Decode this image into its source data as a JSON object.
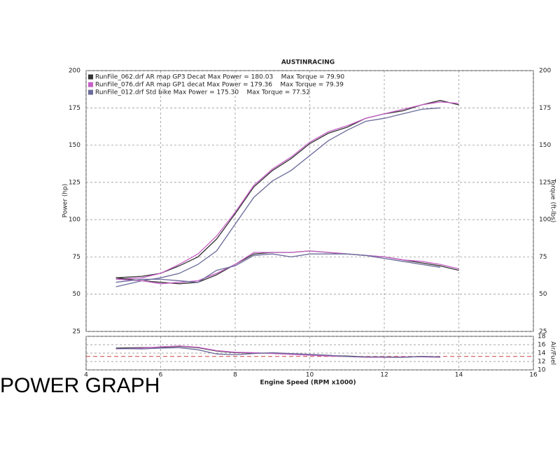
{
  "caption": "POWER GRAPH",
  "chart_data": [
    {
      "type": "line",
      "title": "AUSTINRACING",
      "y_label": "Power (hp)",
      "y2_label": "Torque (ft-lbs)",
      "xlim": [
        4,
        16
      ],
      "xticks": [
        4,
        6,
        8,
        10,
        12,
        14,
        16
      ],
      "ylim": [
        25,
        200
      ],
      "yticks": [
        25,
        50,
        75,
        100,
        125,
        150,
        175,
        200
      ],
      "y2lim": [
        25,
        200
      ],
      "y2ticks": [
        25,
        50,
        75,
        100,
        125,
        150,
        175,
        200
      ],
      "grid": true,
      "x": [
        4.8,
        5.5,
        6,
        6.5,
        7,
        7.5,
        8,
        8.5,
        9,
        9.5,
        10,
        10.5,
        11,
        11.5,
        12,
        12.5,
        13,
        13.5,
        14
      ],
      "series": [
        {
          "name": "RunFile_062.drf AR map GP3 Decat Max Power = 180.03    Max Torque = 79.90",
          "color": "#333333",
          "values": [
            61,
            62,
            64,
            69,
            75,
            87,
            104,
            122,
            133,
            141,
            151,
            158,
            162,
            168,
            171,
            173,
            177,
            180,
            177
          ]
        },
        {
          "name": "RunFile_076.drf AR map GP1 decat Max Power = 179.36    Max Torque = 79.39",
          "color": "#c65fc6",
          "values": [
            60,
            61,
            64,
            70,
            77,
            89,
            105,
            123,
            134,
            142,
            152,
            159,
            163,
            168,
            171,
            174,
            177,
            179,
            178
          ]
        },
        {
          "name": "RunFile_012.drf Std bike Max Power = 175.30    Max Torque = 77.52",
          "color": "#6a6a9a",
          "values": [
            55,
            59,
            61,
            64,
            70,
            79,
            97,
            115,
            126,
            133,
            143,
            153,
            160,
            166,
            168,
            171,
            174,
            175,
            null
          ]
        },
        {
          "color": "#333333",
          "axis": "y2",
          "values": [
            61,
            59,
            58,
            57,
            58,
            63,
            70,
            77,
            78,
            78,
            79,
            78,
            77,
            76,
            75,
            73,
            71,
            69,
            66
          ]
        },
        {
          "color": "#c65fc6",
          "axis": "y2",
          "values": [
            60,
            59,
            57,
            58,
            59,
            64,
            70,
            78,
            78,
            78,
            79,
            78,
            77,
            76,
            75,
            73,
            72,
            70,
            67
          ]
        },
        {
          "color": "#6a6a9a",
          "axis": "y2",
          "values": [
            58,
            60,
            60,
            59,
            58,
            66,
            69,
            76,
            77,
            75,
            77,
            77,
            77,
            76,
            74,
            72,
            70,
            68,
            null
          ]
        }
      ]
    },
    {
      "type": "line",
      "x_label": "Engine Speed (RPM x1000)",
      "y2_label": "Air/Fuel",
      "xlim": [
        4,
        16
      ],
      "xticks": [
        4,
        6,
        8,
        10,
        12,
        14,
        16
      ],
      "ylim": [
        10,
        18
      ],
      "yticks": [
        10,
        12,
        14,
        16,
        18
      ],
      "grid": true,
      "afr_reference": 13.2,
      "reference_color": "#d04040",
      "x": [
        4.8,
        5.5,
        6,
        6.5,
        7,
        7.5,
        8,
        8.5,
        9,
        9.5,
        10,
        10.5,
        11,
        11.5,
        12,
        12.5,
        13,
        13.5,
        14
      ],
      "series": [
        {
          "color": "#333333",
          "values": [
            15.2,
            15.3,
            15.4,
            15.6,
            15.3,
            14.5,
            14.1,
            14.0,
            14.0,
            13.8,
            13.6,
            13.4,
            13.3,
            13.1,
            13.0,
            13.0,
            13.2,
            13.1,
            null
          ]
        },
        {
          "color": "#c65fc6",
          "values": [
            15.0,
            15.2,
            15.5,
            15.7,
            15.4,
            14.6,
            14.2,
            14.1,
            13.9,
            13.7,
            13.5,
            13.3,
            13.2,
            13.0,
            13.0,
            13.1,
            13.1,
            13.0,
            null
          ]
        },
        {
          "color": "#6a6a9a",
          "values": [
            15.1,
            15.0,
            15.2,
            15.3,
            14.8,
            13.8,
            13.6,
            13.9,
            14.1,
            13.9,
            13.7,
            13.5,
            13.2,
            13.1,
            13.1,
            13.0,
            13.2,
            13.1,
            null
          ]
        }
      ]
    }
  ]
}
